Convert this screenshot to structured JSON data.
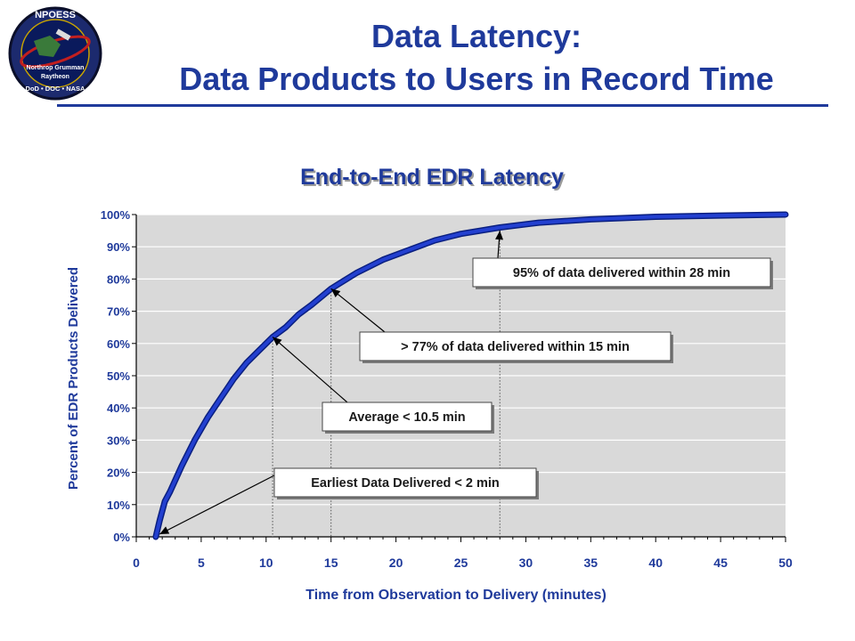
{
  "header": {
    "title_line1": "Data Latency:",
    "title_line2": "Data Products to Users in Record Time",
    "logo": {
      "text_top": "NPOESS",
      "text_lines": [
        "Northrop Grumman",
        "Raytheon",
        "DoD • DOC • NASA"
      ]
    }
  },
  "colors": {
    "title": "#1f3a9b",
    "line": "#2340d0",
    "plot_bg": "#d9d9d9"
  },
  "chart_data": {
    "type": "line",
    "title": "End-to-End EDR Latency",
    "xlabel": "Time from Observation to Delivery (minutes)",
    "ylabel": "Percent of EDR Products Delivered",
    "xlim": [
      0,
      50
    ],
    "ylim": [
      0,
      100
    ],
    "x_ticks": [
      "0",
      "5",
      "10",
      "15",
      "20",
      "25",
      "30",
      "35",
      "40",
      "45",
      "50"
    ],
    "y_ticks": [
      "0%",
      "10%",
      "20%",
      "30%",
      "40%",
      "50%",
      "60%",
      "70%",
      "80%",
      "90%",
      "100%"
    ],
    "grid": true,
    "series": [
      {
        "x": [
          1.5,
          1.8,
          2.2,
          2.6,
          3.5,
          4.5,
          5.5,
          6.5,
          7.5,
          8.5,
          9.5,
          10.5,
          11.5,
          12.5,
          13.5,
          15,
          17,
          19,
          21,
          23,
          25,
          28,
          31,
          35,
          40,
          45,
          50
        ],
        "y": [
          0,
          5,
          11,
          14,
          22,
          30,
          37,
          43,
          49,
          54,
          58,
          62,
          65,
          69,
          72,
          77,
          82,
          86,
          89,
          92,
          94,
          96,
          97.5,
          98.5,
          99.3,
          99.7,
          100
        ]
      }
    ],
    "annotations": [
      {
        "text": "95% of data delivered within 28 min",
        "x": 28,
        "y": 95
      },
      {
        "text": "> 77% of data delivered within 15 min",
        "x": 15,
        "y": 77
      },
      {
        "text": "Average < 10.5 min",
        "x": 10.5,
        "y": 62
      },
      {
        "text": "Earliest Data Delivered < 2 min",
        "x": 1.8,
        "y": 0
      }
    ]
  }
}
